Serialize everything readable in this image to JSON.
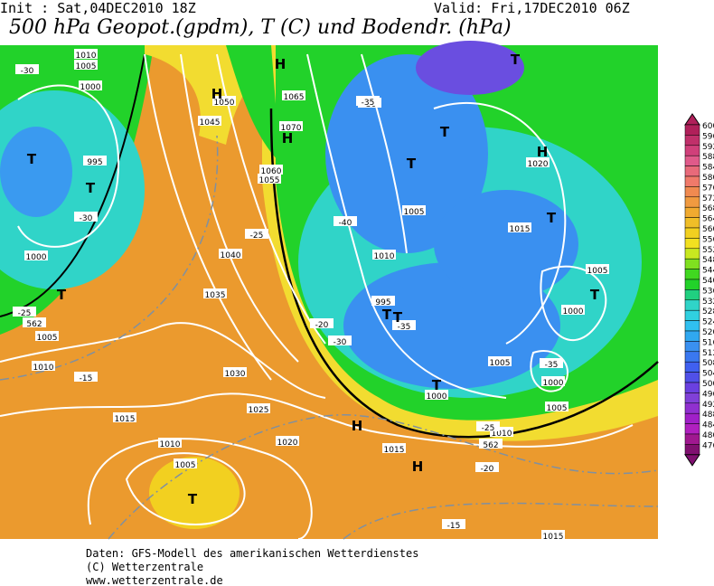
{
  "header": {
    "init": "Init : Sat,04DEC2010 18Z",
    "valid": "Valid: Fri,17DEC2010 06Z",
    "title": "500 hPa Geopot.(gpdm), T (C) und Bodendr. (hPa)"
  },
  "colorbar": {
    "ticks": [
      600,
      596,
      592,
      588,
      584,
      580,
      576,
      572,
      568,
      564,
      560,
      556,
      552,
      548,
      544,
      540,
      536,
      532,
      528,
      524,
      520,
      516,
      512,
      508,
      504,
      500,
      496,
      492,
      488,
      484,
      480,
      476
    ]
  },
  "map_labels": [
    "1010",
    "1005",
    "1000",
    "-30",
    "T",
    "T",
    "995",
    "-30",
    "1000",
    "T",
    "-25",
    "562",
    "1005",
    "1010",
    "-15",
    "1015",
    "1010",
    "1005",
    "T",
    "1020",
    "1025",
    "1030",
    "1035",
    "1040",
    "1045",
    "1050",
    "1055",
    "1060",
    "1065",
    "1070",
    "H",
    "H",
    "H",
    "-40",
    "-30",
    "-35",
    "1005",
    "1010",
    "1015",
    "1020",
    "H",
    "T",
    "T",
    "T",
    "T",
    "-35",
    "1005",
    "1000",
    "995",
    "T",
    "-35",
    "-30",
    "1000",
    "T",
    "1005",
    "1010",
    "562",
    "-25",
    "-20",
    "-15",
    "H",
    "H",
    "1015",
    "1015",
    "1005",
    "T",
    "T",
    "-20",
    "-25",
    "1000"
  ],
  "footer": {
    "line1": "Daten: GFS-Modell des amerikanischen Wetterdienstes",
    "line2": "(C) Wetterzentrale",
    "line3": "www.wetterzentrale.de"
  }
}
